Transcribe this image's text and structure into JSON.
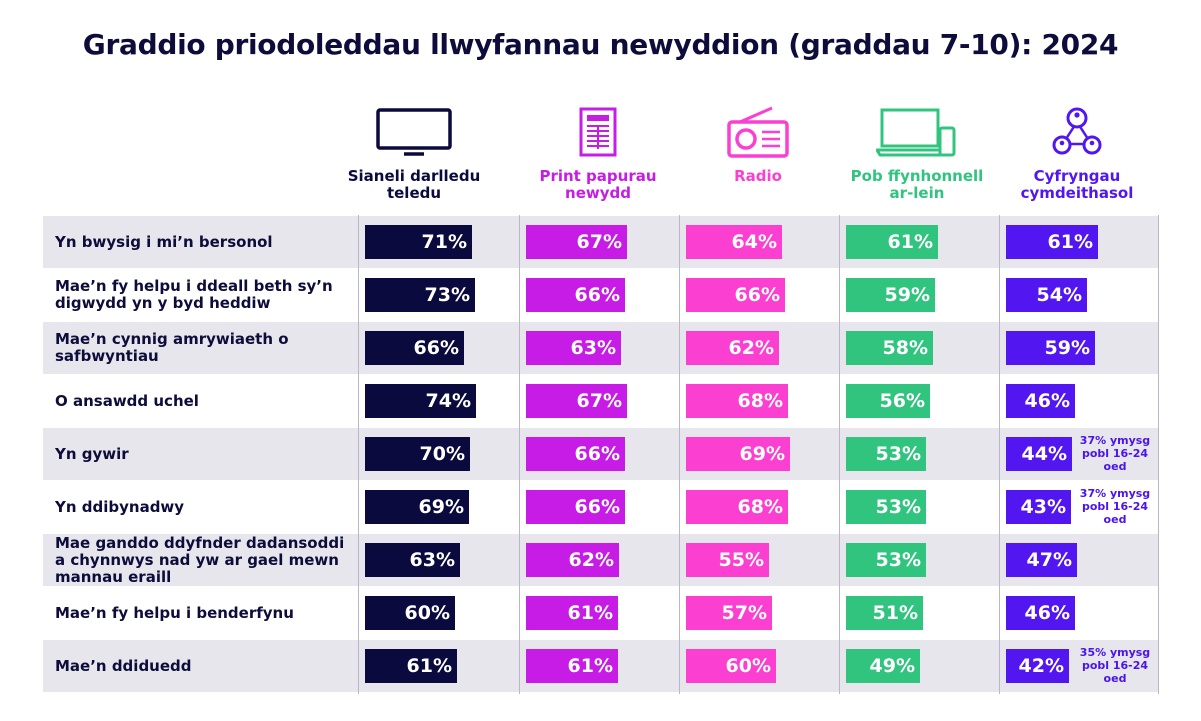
{
  "title": "Graddio priodoleddau llwyfannau newyddion (graddau 7-10): 2024",
  "colors": {
    "tv": "#0b0a3e",
    "print": "#c61ce6",
    "radio": "#fb3fd0",
    "online": "#30c47e",
    "social": "#5217f0",
    "stripe": "#e6e6ec",
    "text": "#0d0c3a"
  },
  "chart_data": {
    "type": "bar",
    "title": "Graddio priodoleddau llwyfannau newyddion (graddau 7-10): 2024",
    "categories": [
      "Yn bwysig i mi’n bersonol",
      "Mae’n fy helpu i ddeall beth sy’n digwydd yn y byd heddiw",
      "Mae’n cynnig amrywiaeth o safbwyntiau",
      "O ansawdd uchel",
      "Yn gywir",
      "Yn ddibynadwy",
      "Mae ganddo ddyfnder dadansoddi a chynnwys nad yw ar gael mewn mannau eraill",
      "Mae’n fy helpu i benderfynu",
      "Mae’n ddiduedd"
    ],
    "series": [
      {
        "name": "Sianeli darlledu teledu",
        "icon": "tv-icon",
        "color": "#0b0a3e",
        "values": [
          71,
          73,
          66,
          74,
          70,
          69,
          63,
          60,
          61
        ]
      },
      {
        "name": "Print papurau newydd",
        "icon": "newspaper-icon",
        "color": "#c61ce6",
        "values": [
          67,
          66,
          63,
          67,
          66,
          66,
          62,
          61,
          61
        ]
      },
      {
        "name": "Radio",
        "icon": "radio-icon",
        "color": "#fb3fd0",
        "values": [
          64,
          66,
          62,
          68,
          69,
          68,
          55,
          57,
          60
        ]
      },
      {
        "name": "Pob ffynhonnell ar-lein",
        "icon": "laptop-phone-icon",
        "color": "#30c47e",
        "values": [
          61,
          59,
          58,
          56,
          53,
          53,
          53,
          51,
          49
        ]
      },
      {
        "name": "Cyfryngau cymdeithasol",
        "icon": "social-network-icon",
        "color": "#5217f0",
        "values": [
          61,
          54,
          59,
          46,
          44,
          43,
          47,
          46,
          42
        ]
      }
    ],
    "value_suffix": "%",
    "annotations": [
      {
        "row": 4,
        "series": 4,
        "text": "37% ymysg pobl 16-24 oed"
      },
      {
        "row": 5,
        "series": 4,
        "text": "37% ymysg pobl 16-24 oed"
      },
      {
        "row": 8,
        "series": 4,
        "text": "35% ymysg pobl 16-24 oed"
      }
    ]
  }
}
